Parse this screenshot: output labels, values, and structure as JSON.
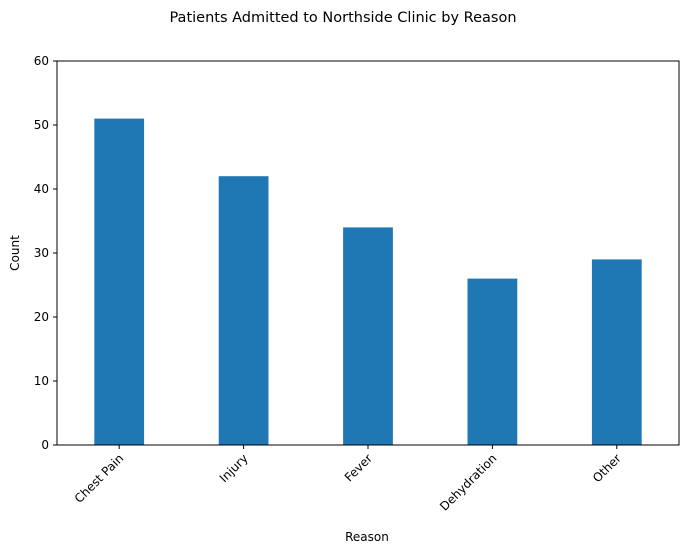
{
  "chart_data": {
    "type": "bar",
    "title": "Patients Admitted to Northside Clinic by Reason",
    "xlabel": "Reason",
    "ylabel": "Count",
    "categories": [
      "Chest Pain",
      "Injury",
      "Fever",
      "Dehydration",
      "Other"
    ],
    "values": [
      51,
      42,
      34,
      26,
      29
    ],
    "ylim": [
      0,
      60
    ],
    "yticks": [
      0,
      10,
      20,
      30,
      40,
      50,
      60
    ],
    "grid": false,
    "bar_color": "#1f77b4",
    "xtick_rotation": 45
  }
}
